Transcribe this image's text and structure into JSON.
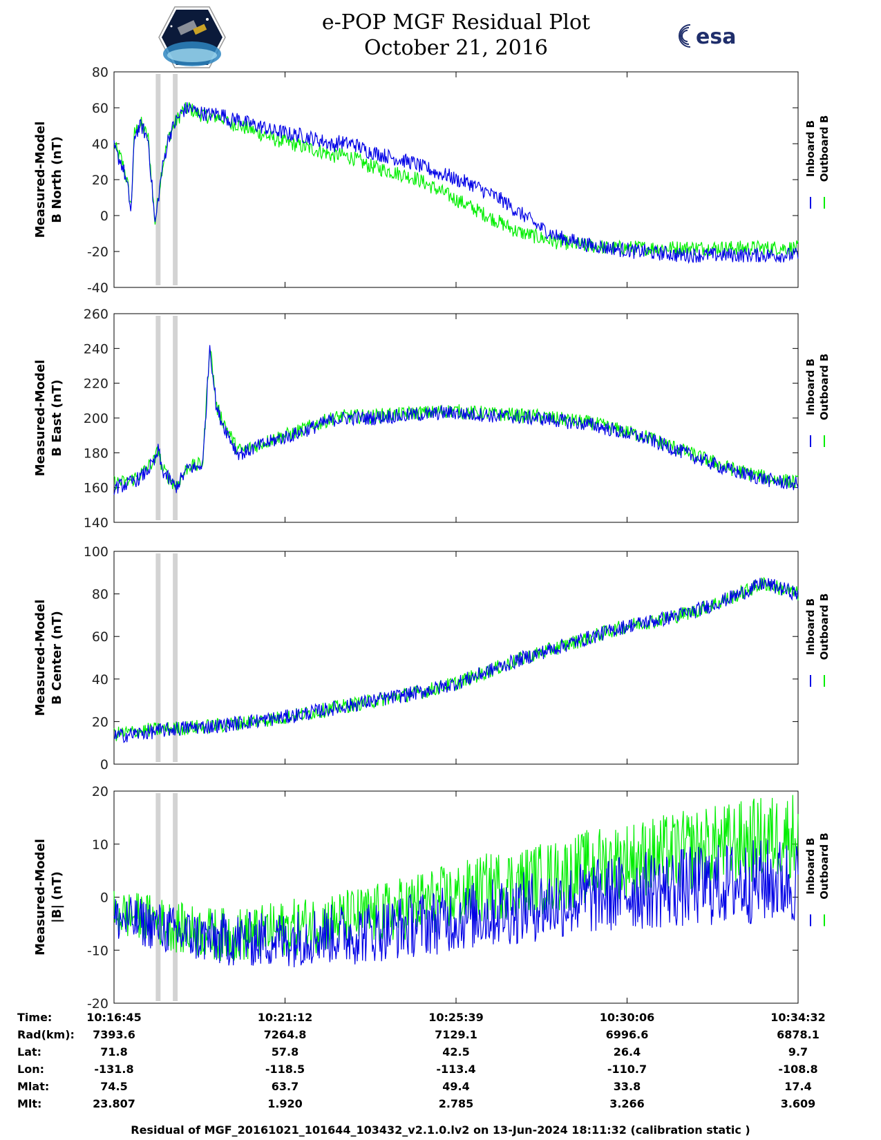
{
  "title": {
    "line1": "e-POP MGF Residual Plot",
    "line2": "October 21, 2016"
  },
  "logos": {
    "mission": "cassiope-mission-logo",
    "agency_text": "esa"
  },
  "colors": {
    "inboard": "#0000e6",
    "outboard": "#00ee00",
    "gap_band": "#d3d3d3"
  },
  "chart_data": [
    {
      "type": "line",
      "ylabel_line1": "Measured-Model",
      "ylabel_line2": "B North (nT)",
      "ylim": [
        -40,
        80
      ],
      "yticks": [
        -40,
        -20,
        0,
        20,
        40,
        60,
        80
      ],
      "legend": [
        "Inboard B",
        "Outboard B"
      ],
      "legend_position": "right",
      "grid": false,
      "series": [
        {
          "name": "Inboard B",
          "x": [
            0,
            0.5,
            1,
            1.5,
            2,
            2.5,
            3,
            3.5,
            4,
            4.5,
            5,
            6,
            7,
            8,
            9,
            10,
            11,
            12,
            13,
            14,
            15,
            16,
            17,
            18,
            19,
            20,
            21,
            22,
            23,
            24,
            25,
            26,
            27,
            28,
            29,
            30,
            31,
            32,
            33,
            34,
            35,
            36,
            37,
            38,
            39,
            40,
            41,
            42,
            43,
            44,
            45,
            46,
            47,
            48,
            49,
            50,
            51,
            52,
            53,
            54,
            55,
            56,
            57,
            58,
            59,
            60,
            61,
            62,
            63,
            64,
            65,
            66,
            67,
            68,
            69,
            70,
            71,
            72,
            73,
            74,
            75,
            76,
            77,
            78,
            79,
            80,
            81,
            82,
            83,
            84,
            85,
            86,
            87,
            88,
            89,
            90,
            91,
            92,
            93,
            94,
            95,
            96,
            97,
            98,
            99,
            100
          ],
          "y": [
            38,
            33,
            30,
            24,
            15,
            2,
            45,
            48,
            50,
            46,
            42,
            -5,
            25,
            44,
            52,
            58,
            60,
            58,
            57,
            56,
            57,
            56,
            53,
            54,
            52,
            51,
            50,
            49,
            47,
            47,
            46,
            45,
            45,
            44,
            43,
            42,
            41,
            39,
            41,
            40,
            40,
            38,
            36,
            35,
            34,
            33,
            32,
            31,
            30,
            29,
            27,
            26,
            24,
            23,
            22,
            20,
            19,
            18,
            16,
            14,
            12,
            10,
            8,
            5,
            2,
            0,
            -3,
            -6,
            -8,
            -10,
            -12,
            -13,
            -14,
            -15,
            -16,
            -17,
            -17,
            -18,
            -18,
            -19,
            -19,
            -20,
            -20,
            -20,
            -21,
            -21,
            -21,
            -22,
            -22,
            -22,
            -22,
            -22,
            -22,
            -22,
            -22,
            -22,
            -22,
            -22,
            -22,
            -22,
            -22,
            -22,
            -22,
            -22,
            -22,
            -22
          ]
        },
        {
          "name": "Outboard B",
          "x": [
            0,
            0.5,
            1,
            1.5,
            2,
            2.5,
            3,
            3.5,
            4,
            4.5,
            5,
            6,
            7,
            8,
            9,
            10,
            11,
            12,
            13,
            14,
            15,
            16,
            17,
            18,
            19,
            20,
            21,
            22,
            23,
            24,
            25,
            26,
            27,
            28,
            29,
            30,
            31,
            32,
            33,
            34,
            35,
            36,
            37,
            38,
            39,
            40,
            41,
            42,
            43,
            44,
            45,
            46,
            47,
            48,
            49,
            50,
            51,
            52,
            53,
            54,
            55,
            56,
            57,
            58,
            59,
            60,
            61,
            62,
            63,
            64,
            65,
            66,
            67,
            68,
            69,
            70,
            71,
            72,
            73,
            74,
            75,
            76,
            77,
            78,
            79,
            80,
            81,
            82,
            83,
            84,
            85,
            86,
            87,
            88,
            89,
            90,
            91,
            92,
            93,
            94,
            95,
            96,
            97,
            98,
            99,
            100
          ],
          "y": [
            40,
            35,
            32,
            26,
            17,
            4,
            46,
            49,
            51,
            47,
            43,
            -4,
            26,
            44,
            52,
            58,
            60,
            57,
            56,
            55,
            55,
            54,
            51,
            51,
            49,
            48,
            46,
            45,
            43,
            42,
            41,
            40,
            39,
            38,
            37,
            36,
            35,
            33,
            34,
            33,
            32,
            30,
            28,
            27,
            26,
            25,
            24,
            23,
            22,
            21,
            19,
            17,
            15,
            13,
            11,
            9,
            7,
            5,
            3,
            1,
            -1,
            -3,
            -5,
            -7,
            -9,
            -10,
            -11,
            -12,
            -13,
            -14,
            -15,
            -15,
            -16,
            -16,
            -17,
            -17,
            -17,
            -18,
            -18,
            -18,
            -18,
            -18,
            -18,
            -18,
            -18,
            -18,
            -18,
            -18,
            -18,
            -18,
            -18,
            -18,
            -18,
            -18,
            -18,
            -18,
            -18,
            -18,
            -18,
            -18,
            -18,
            -18,
            -18,
            -18,
            -18,
            -18
          ]
        }
      ]
    },
    {
      "type": "line",
      "ylabel_line1": "Measured-Model",
      "ylabel_line2": "B East (nT)",
      "ylim": [
        140,
        260
      ],
      "yticks": [
        140,
        160,
        180,
        200,
        220,
        240,
        260
      ],
      "legend": [
        "Inboard B",
        "Outboard B"
      ],
      "legend_position": "right",
      "grid": false,
      "series": [
        {
          "name": "Inboard B",
          "x": [
            0,
            2,
            4,
            6,
            6.5,
            7,
            8,
            9,
            10,
            11,
            12,
            13,
            14,
            15,
            16,
            17,
            18,
            19,
            20,
            22,
            24,
            26,
            28,
            30,
            32,
            34,
            36,
            38,
            40,
            42,
            44,
            46,
            48,
            50,
            52,
            54,
            56,
            58,
            60,
            62,
            64,
            66,
            68,
            70,
            72,
            74,
            76,
            78,
            80,
            82,
            84,
            86,
            88,
            90,
            92,
            94,
            96,
            98,
            100
          ],
          "y": [
            160,
            162,
            166,
            175,
            182,
            170,
            165,
            160,
            166,
            172,
            171,
            174,
            242,
            205,
            196,
            188,
            180,
            180,
            182,
            185,
            188,
            190,
            193,
            196,
            199,
            200,
            200,
            200,
            201,
            201,
            202,
            202,
            203,
            203,
            202,
            202,
            201,
            201,
            200,
            200,
            199,
            198,
            197,
            196,
            194,
            192,
            190,
            188,
            185,
            182,
            179,
            176,
            173,
            170,
            168,
            166,
            164,
            163,
            162
          ]
        },
        {
          "name": "Outboard B",
          "x": [
            0,
            2,
            4,
            6,
            6.5,
            7,
            8,
            9,
            10,
            11,
            12,
            13,
            14,
            15,
            16,
            17,
            18,
            19,
            20,
            22,
            24,
            26,
            28,
            30,
            32,
            34,
            36,
            38,
            40,
            42,
            44,
            46,
            48,
            50,
            52,
            54,
            56,
            58,
            60,
            62,
            64,
            66,
            68,
            70,
            72,
            74,
            76,
            78,
            80,
            82,
            84,
            86,
            88,
            90,
            92,
            94,
            96,
            98,
            100
          ],
          "y": [
            163,
            163,
            168,
            176,
            183,
            171,
            166,
            161,
            167,
            173,
            172,
            175,
            243,
            206,
            198,
            190,
            182,
            181,
            183,
            186,
            189,
            191,
            194,
            197,
            200,
            201,
            201,
            201,
            202,
            202,
            203,
            203,
            204,
            204,
            203,
            203,
            202,
            202,
            201,
            201,
            200,
            199,
            198,
            197,
            195,
            193,
            191,
            189,
            186,
            183,
            180,
            177,
            174,
            171,
            169,
            167,
            165,
            164,
            163
          ]
        }
      ]
    },
    {
      "type": "line",
      "ylabel_line1": "Measured-Model",
      "ylabel_line2": "B Center (nT)",
      "ylim": [
        0,
        100
      ],
      "yticks": [
        0,
        20,
        40,
        60,
        80,
        100
      ],
      "legend": [
        "Inboard B",
        "Outboard B"
      ],
      "legend_position": "right",
      "grid": false,
      "series": [
        {
          "name": "Inboard B",
          "x": [
            0,
            5,
            10,
            15,
            20,
            25,
            30,
            35,
            40,
            45,
            50,
            55,
            60,
            65,
            70,
            75,
            80,
            85,
            90,
            95,
            100
          ],
          "y": [
            13,
            15,
            17,
            18,
            20,
            22,
            25,
            28,
            31,
            34,
            38,
            44,
            50,
            55,
            60,
            65,
            68,
            72,
            78,
            85,
            80
          ]
        },
        {
          "name": "Outboard B",
          "x": [
            0,
            5,
            10,
            15,
            20,
            25,
            30,
            35,
            40,
            45,
            50,
            55,
            60,
            65,
            70,
            75,
            80,
            85,
            90,
            95,
            100
          ],
          "y": [
            14,
            16,
            17,
            18,
            20,
            22,
            25,
            28,
            31,
            34,
            38,
            44,
            50,
            55,
            60,
            65,
            68,
            72,
            78,
            85,
            80
          ]
        }
      ]
    },
    {
      "type": "line",
      "ylabel_line1": "Measured-Model",
      "ylabel_line2": "|B| (nT)",
      "ylim": [
        -20,
        20
      ],
      "yticks": [
        -20,
        -10,
        0,
        10,
        20
      ],
      "legend": [
        "Inboard B",
        "Outboard B"
      ],
      "legend_position": "right",
      "grid": false,
      "series": [
        {
          "name": "Inboard B",
          "x": [
            0,
            5,
            10,
            15,
            20,
            25,
            30,
            35,
            40,
            45,
            50,
            55,
            60,
            65,
            70,
            75,
            80,
            85,
            90,
            95,
            100
          ],
          "y": [
            -4,
            -5,
            -7,
            -8,
            -8,
            -8,
            -7,
            -7,
            -6,
            -5,
            -4,
            -3,
            -2,
            -1,
            0,
            1,
            1.5,
            2,
            2.5,
            3,
            3
          ]
        },
        {
          "name": "Outboard B",
          "x": [
            0,
            5,
            10,
            15,
            20,
            25,
            30,
            35,
            40,
            45,
            50,
            55,
            60,
            65,
            70,
            75,
            80,
            85,
            90,
            95,
            100
          ],
          "y": [
            -3,
            -4,
            -6,
            -7,
            -7,
            -6,
            -5,
            -4,
            -3,
            -1,
            0,
            2,
            3,
            4,
            6,
            7,
            8,
            9,
            10,
            11,
            12
          ]
        }
      ]
    }
  ],
  "gap_bands_x": [
    [
      6.1,
      6.8
    ],
    [
      8.6,
      9.3
    ]
  ],
  "time_axis": {
    "ticks": [
      0,
      25,
      50,
      75,
      100
    ],
    "rows": [
      {
        "label": "Time:",
        "values": [
          "10:16:45",
          "10:21:12",
          "10:25:39",
          "10:30:06",
          "10:34:32"
        ]
      },
      {
        "label": "Rad(km):",
        "values": [
          "7393.6",
          "7264.8",
          "7129.1",
          "6996.6",
          "6878.1"
        ]
      },
      {
        "label": "Lat:",
        "values": [
          "71.8",
          "57.8",
          "42.5",
          "26.4",
          "9.7"
        ]
      },
      {
        "label": "Lon:",
        "values": [
          "-131.8",
          "-118.5",
          "-113.4",
          "-110.7",
          "-108.8"
        ]
      },
      {
        "label": "Mlat:",
        "values": [
          "74.5",
          "63.7",
          "49.4",
          "33.8",
          "17.4"
        ]
      },
      {
        "label": "Mlt:",
        "values": [
          "23.807",
          "1.920",
          "2.785",
          "3.266",
          "3.609"
        ]
      }
    ]
  },
  "footer": "Residual of MGF_20161021_101644_103432_v2.1.0.lv2 on 13-Jun-2024 18:11:32 (calibration static )"
}
